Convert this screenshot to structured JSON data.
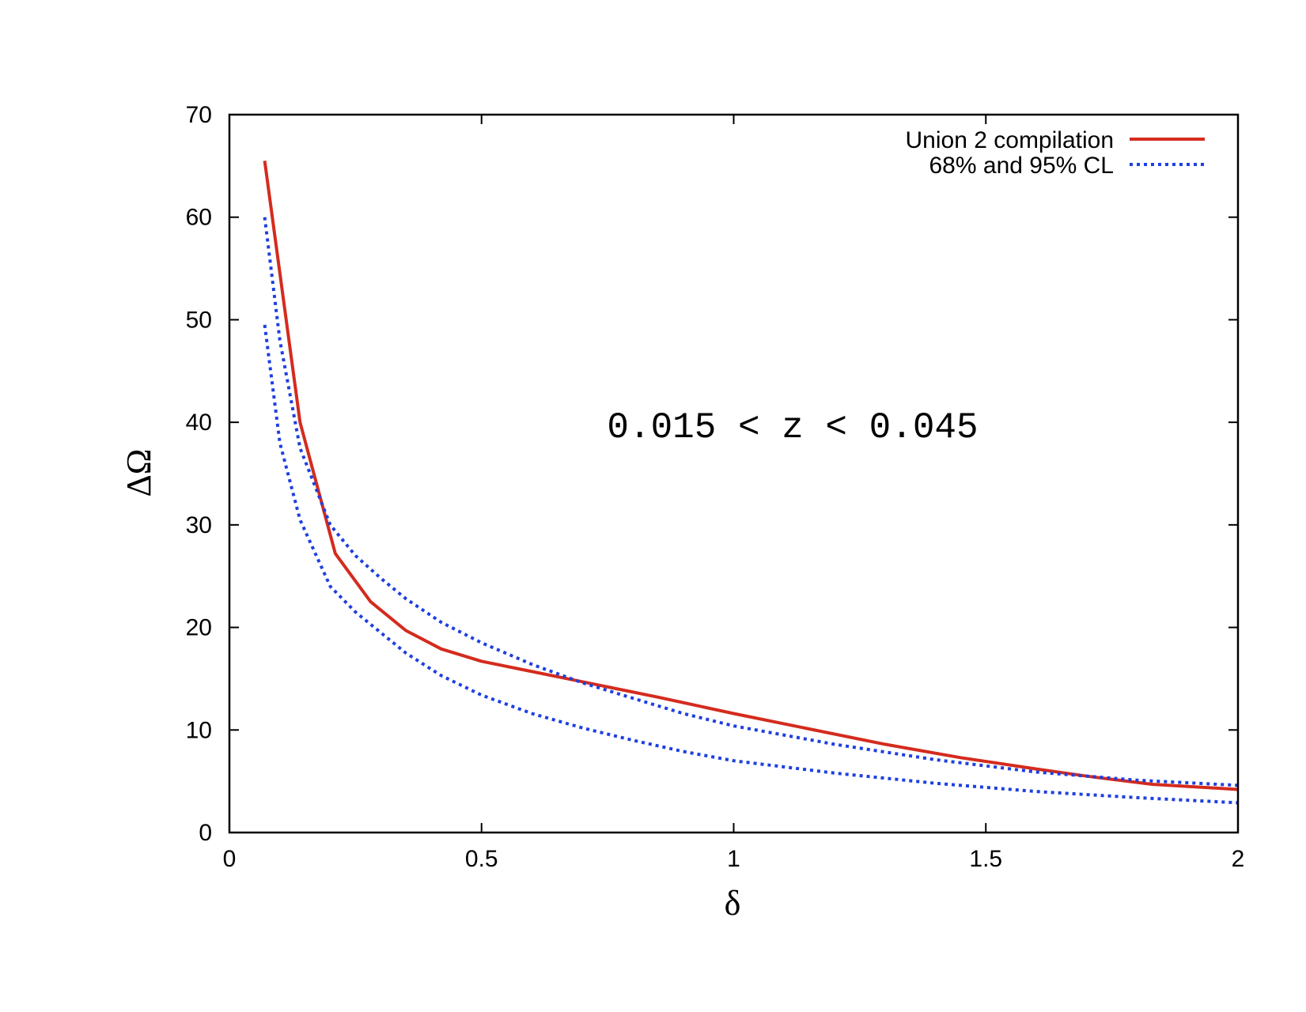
{
  "chart_data": {
    "type": "line",
    "title": "",
    "xlabel": "δ",
    "ylabel": "ΔΩ",
    "xlim": [
      0,
      2
    ],
    "ylim": [
      0,
      70
    ],
    "xticks": [
      0,
      0.5,
      1,
      1.5,
      2
    ],
    "xtick_labels": [
      "0",
      "0.5",
      "1",
      "1.5",
      "2"
    ],
    "yticks": [
      0,
      10,
      20,
      30,
      40,
      50,
      60,
      70
    ],
    "ytick_labels": [
      "0",
      "10",
      "20",
      "30",
      "40",
      "50",
      "60",
      "70"
    ],
    "grid": false,
    "legend_position": "top-right",
    "annotation": "0.015 < z < 0.045",
    "series": [
      {
        "name": "Union 2 compilation",
        "style": "solid",
        "color": "#d42b1e",
        "x": [
          0.07,
          0.14,
          0.21,
          0.28,
          0.35,
          0.42,
          0.5,
          0.57,
          0.7,
          0.85,
          1.0,
          1.15,
          1.3,
          1.45,
          1.6,
          1.7,
          1.83,
          2.0
        ],
        "y": [
          65.5,
          40.0,
          27.2,
          22.5,
          19.7,
          17.9,
          16.7,
          16.0,
          14.7,
          13.2,
          11.6,
          10.1,
          8.6,
          7.3,
          6.2,
          5.5,
          4.7,
          4.2
        ]
      },
      {
        "name": "68% and 95% CL",
        "style": "dotted",
        "color": "#1e3fe0",
        "x": [
          0.07,
          0.1,
          0.14,
          0.2,
          0.25,
          0.3,
          0.35,
          0.42,
          0.5,
          0.6,
          0.7,
          0.8,
          0.9,
          1.0,
          1.2,
          1.4,
          1.6,
          1.8,
          2.0
        ],
        "y": [
          60.0,
          48.0,
          37.5,
          30.0,
          27.0,
          24.8,
          22.8,
          20.5,
          18.5,
          16.4,
          14.6,
          13.1,
          11.6,
          10.4,
          8.6,
          7.1,
          5.9,
          5.1,
          4.6
        ]
      },
      {
        "name": "",
        "style": "dotted",
        "color": "#1e3fe0",
        "x": [
          0.07,
          0.1,
          0.14,
          0.2,
          0.25,
          0.3,
          0.35,
          0.42,
          0.5,
          0.6,
          0.7,
          0.8,
          0.9,
          1.0,
          1.2,
          1.4,
          1.6,
          1.8,
          2.0
        ],
        "y": [
          49.5,
          38.0,
          30.5,
          24.0,
          21.5,
          19.5,
          17.5,
          15.3,
          13.4,
          11.6,
          10.2,
          9.0,
          7.9,
          7.0,
          5.8,
          4.8,
          4.0,
          3.4,
          2.9
        ]
      }
    ]
  },
  "legend": {
    "entries": [
      {
        "label": "Union 2 compilation"
      },
      {
        "label": "68% and 95% CL"
      }
    ]
  }
}
